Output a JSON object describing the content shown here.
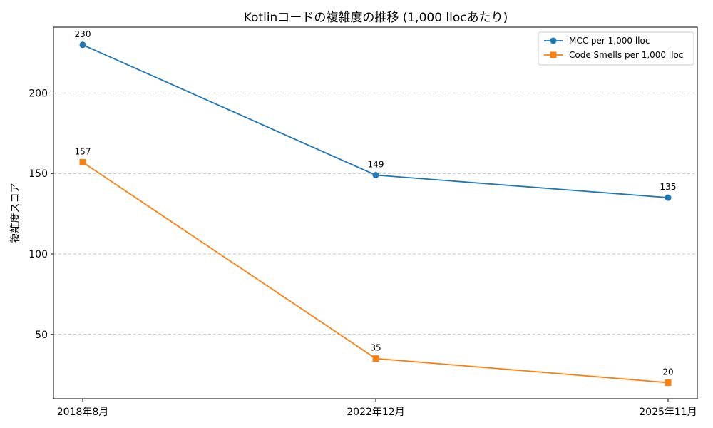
{
  "chart_data": {
    "type": "line",
    "title": "Kotlinコードの複雑度の推移 (1,000 llocあたり)",
    "xlabel": "",
    "ylabel": "複雑度スコア",
    "categories": [
      "2018年8月",
      "2022年12月",
      "2025年11月"
    ],
    "y_ticks": [
      50,
      100,
      150,
      200
    ],
    "ylim": [
      10,
      241
    ],
    "grid": "y-dashed",
    "legend_position": "top-right",
    "series": [
      {
        "name": "MCC per 1,000 lloc",
        "values": [
          230,
          149,
          135
        ],
        "color": "#1f77b4",
        "marker": "circle"
      },
      {
        "name": "Code Smells per 1,000 lloc",
        "values": [
          157,
          35,
          20
        ],
        "color": "#ff7f0e",
        "marker": "square"
      }
    ]
  }
}
